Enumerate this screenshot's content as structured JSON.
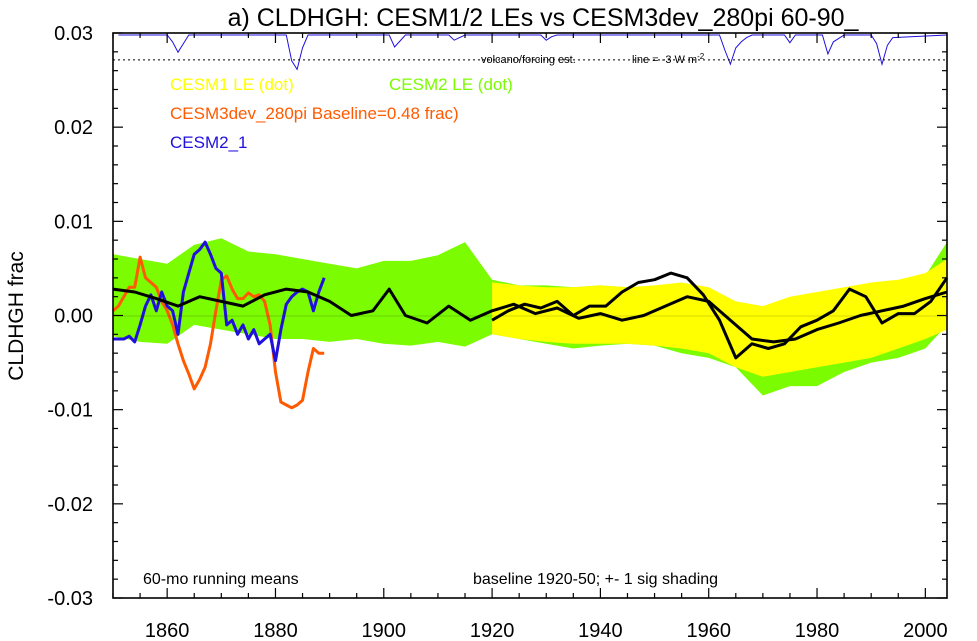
{
  "chart_data": {
    "type": "line",
    "title": "a) CLDHGH: CESM1/2 LEs vs CESM3dev_280pi 60-90_",
    "ylabel": "CLDHGH frac",
    "xlabel": "",
    "xlim": [
      1850,
      2004
    ],
    "ylim": [
      -0.03,
      0.03
    ],
    "x_ticks": [
      1860,
      1880,
      1900,
      1920,
      1940,
      1960,
      1980,
      2000
    ],
    "y_ticks": [
      0.03,
      0.02,
      0.01,
      0.0,
      -0.01,
      -0.02,
      -0.03
    ],
    "y_tick_labels": [
      "0.03",
      "0.02",
      "0.01",
      "0.00",
      "-0.01",
      "-0.02",
      "-0.03"
    ],
    "legend": [
      {
        "label": "CESM1 LE (dot)",
        "color": "#ffff00"
      },
      {
        "label": "CESM2 LE (dot)",
        "color": "#7cfc00"
      },
      {
        "label": "CESM3dev_280pi Baseline=0.48 frac)",
        "color": "#ff5a00"
      },
      {
        "label": "CESM2_1",
        "color": "#2010dd"
      }
    ],
    "legend_placement": "top-left",
    "annotations": {
      "running_mean": "60-mo running means",
      "baseline": "baseline 1920-50; +- 1 sig shading",
      "volcano": "volcano/forcing est.",
      "volcano_line": "line = -3 W m",
      "volcano_line_sup": "-2"
    },
    "cesm2_band": {
      "x": [
        1850,
        1855,
        1860,
        1865,
        1870,
        1875,
        1880,
        1885,
        1890,
        1895,
        1900,
        1905,
        1910,
        1915,
        1920,
        1925,
        1930,
        1935,
        1940,
        1945,
        1950,
        1955,
        1960,
        1965,
        1970,
        1975,
        1980,
        1985,
        1990,
        1995,
        2000,
        2004
      ],
      "upper": [
        0.0065,
        0.006,
        0.0055,
        0.0075,
        0.0082,
        0.0068,
        0.0065,
        0.006,
        0.0055,
        0.005,
        0.0058,
        0.0058,
        0.0064,
        0.0078,
        0.0038,
        0.0032,
        0.0032,
        0.003,
        0.0032,
        0.003,
        0.003,
        0.0032,
        0.002,
        0.0012,
        0.0005,
        0.0003,
        0.0008,
        0.0022,
        0.003,
        0.0034,
        0.0042,
        0.0078
      ],
      "lower": [
        -0.0022,
        -0.0028,
        -0.003,
        -0.001,
        -0.0015,
        -0.002,
        -0.0025,
        -0.0025,
        -0.0028,
        -0.0025,
        -0.003,
        -0.0032,
        -0.0028,
        -0.0033,
        -0.002,
        -0.0025,
        -0.003,
        -0.0035,
        -0.0032,
        -0.003,
        -0.0032,
        -0.004,
        -0.0045,
        -0.0055,
        -0.0085,
        -0.0075,
        -0.0075,
        -0.006,
        -0.005,
        -0.0045,
        -0.0035,
        -0.001
      ]
    },
    "cesm1_band": {
      "x": [
        1920,
        1925,
        1930,
        1935,
        1940,
        1945,
        1950,
        1955,
        1960,
        1965,
        1970,
        1975,
        1980,
        1985,
        1990,
        1995,
        2000,
        2004
      ],
      "upper": [
        0.0035,
        0.0032,
        0.003,
        0.003,
        0.0032,
        0.003,
        0.0032,
        0.0035,
        0.003,
        0.0015,
        0.001,
        0.002,
        0.0025,
        0.003,
        0.0035,
        0.0038,
        0.0045,
        0.006
      ],
      "lower": [
        -0.002,
        -0.0025,
        -0.0028,
        -0.003,
        -0.003,
        -0.003,
        -0.0032,
        -0.0035,
        -0.004,
        -0.0055,
        -0.0065,
        -0.006,
        -0.0055,
        -0.005,
        -0.0045,
        -0.0035,
        -0.0025,
        -0.0015
      ]
    },
    "series": [
      {
        "name": "CESM3dev_280pi",
        "color": "#ff5a00",
        "x": [
          1850,
          1851,
          1852,
          1853,
          1854,
          1855,
          1856,
          1857,
          1858,
          1859,
          1860,
          1861,
          1862,
          1863,
          1864,
          1865,
          1866,
          1867,
          1868,
          1869,
          1870,
          1871,
          1872,
          1873,
          1874,
          1875,
          1876,
          1877,
          1878,
          1879,
          1880,
          1881,
          1882,
          1883,
          1884,
          1885,
          1886,
          1887,
          1888,
          1889
        ],
        "y": [
          0.0005,
          0.001,
          0.002,
          0.003,
          0.003,
          0.0062,
          0.004,
          0.0035,
          0.003,
          0.0015,
          0.0005,
          -0.001,
          -0.003,
          -0.0048,
          -0.0062,
          -0.0078,
          -0.0068,
          -0.0055,
          -0.003,
          0.0005,
          0.0038,
          0.0042,
          0.0028,
          0.0018,
          0.0018,
          0.0024,
          0.002,
          0.0022,
          0.0015,
          -0.001,
          -0.006,
          -0.0092,
          -0.0095,
          -0.0098,
          -0.0095,
          -0.009,
          -0.006,
          -0.0035,
          -0.004,
          -0.004
        ]
      },
      {
        "name": "CESM2_1",
        "color": "#2010dd",
        "x": [
          1850,
          1851,
          1852,
          1853,
          1854,
          1855,
          1856,
          1857,
          1858,
          1859,
          1860,
          1861,
          1862,
          1863,
          1864,
          1865,
          1866,
          1867,
          1868,
          1869,
          1870,
          1871,
          1872,
          1873,
          1874,
          1875,
          1876,
          1877,
          1878,
          1879,
          1880,
          1881,
          1882,
          1883,
          1884,
          1885,
          1886,
          1887,
          1888,
          1889
        ],
        "y": [
          -0.0025,
          -0.0025,
          -0.0025,
          -0.0022,
          -0.0028,
          -0.001,
          0.001,
          0.0022,
          0.0005,
          0.0025,
          0.001,
          0.0005,
          -0.002,
          0.0025,
          0.0045,
          0.0065,
          0.007,
          0.0078,
          0.0065,
          0.005,
          0.0045,
          -0.001,
          -0.0005,
          -0.002,
          -0.001,
          -0.0025,
          -0.0015,
          -0.003,
          -0.0025,
          -0.002,
          -0.0048,
          -0.0015,
          0.0012,
          0.002,
          0.0025,
          0.0028,
          0.0025,
          0.0005,
          0.0025,
          0.004
        ]
      },
      {
        "name": "",
        "color": "#000000",
        "x": [
          1850,
          1854,
          1858,
          1862,
          1866,
          1870,
          1874,
          1878,
          1882,
          1886,
          1890,
          1894,
          1898,
          1901,
          1904,
          1908,
          1912,
          1916,
          1920,
          1924,
          1928,
          1932,
          1936,
          1940,
          1944,
          1948,
          1952,
          1956,
          1960,
          1964,
          1968,
          1972,
          1976,
          1980,
          1984,
          1988,
          1992,
          1996,
          2000,
          2004
        ],
        "y": [
          0.0028,
          0.0025,
          0.0018,
          0.001,
          0.002,
          0.0015,
          0.001,
          0.0022,
          0.0028,
          0.0025,
          0.0015,
          0.0,
          0.0005,
          0.0028,
          0.0,
          -0.0008,
          0.001,
          -0.0005,
          0.0005,
          0.0012,
          0.0002,
          0.0008,
          -0.0003,
          0.0002,
          -0.0005,
          0.0,
          0.001,
          0.002,
          0.0015,
          -0.0005,
          -0.0025,
          -0.0028,
          -0.0025,
          -0.0015,
          -0.0008,
          0.0,
          0.0005,
          0.001,
          0.0018,
          0.0025
        ]
      },
      {
        "name": "",
        "color": "#000000",
        "x": [
          1920,
          1923,
          1926,
          1929,
          1932,
          1935,
          1938,
          1941,
          1944,
          1947,
          1950,
          1953,
          1956,
          1959,
          1962,
          1965,
          1968,
          1971,
          1974,
          1977,
          1980,
          1983,
          1986,
          1989,
          1992,
          1995,
          1998,
          2001,
          2004
        ],
        "y": [
          -0.0005,
          0.0005,
          0.0012,
          0.0008,
          0.0015,
          0.0,
          0.001,
          0.001,
          0.0025,
          0.0035,
          0.0038,
          0.0045,
          0.004,
          0.0022,
          -0.0005,
          -0.0045,
          -0.003,
          -0.0035,
          -0.003,
          -0.0012,
          -0.0005,
          0.0005,
          0.0028,
          0.002,
          -0.0008,
          0.0002,
          0.0002,
          0.0015,
          0.004
        ]
      }
    ],
    "volcano": {
      "x": [
        1851,
        1860,
        1861,
        1862,
        1863,
        1864,
        1882,
        1883,
        1884,
        1885,
        1886,
        1901,
        1902,
        1903,
        1904,
        1912,
        1913,
        1914,
        1915,
        1929,
        1930,
        1931,
        1932,
        1962,
        1963,
        1964,
        1965,
        1966,
        1967,
        1968,
        1974,
        1975,
        1976,
        1981,
        1982,
        1983,
        1985,
        1990,
        1991,
        1992,
        1993,
        1994,
        2004
      ],
      "y": [
        0.0,
        0.0,
        -0.0008,
        -0.002,
        -0.001,
        0.0,
        0.0,
        -0.003,
        -0.004,
        -0.0015,
        0.0,
        0.0,
        -0.0014,
        -0.0007,
        0.0,
        0.0,
        -0.0006,
        -0.0003,
        0.0,
        0.0,
        -0.0006,
        -0.0002,
        0.0,
        0.0,
        -0.0018,
        -0.0034,
        -0.0015,
        -0.0008,
        -0.0003,
        0.0,
        0.0,
        -0.0009,
        0.0,
        0.0,
        -0.0022,
        -0.0008,
        0.0,
        0.0,
        -0.001,
        -0.0034,
        -0.0012,
        -0.0003,
        0.0
      ],
      "threshold": -0.0029
    }
  }
}
